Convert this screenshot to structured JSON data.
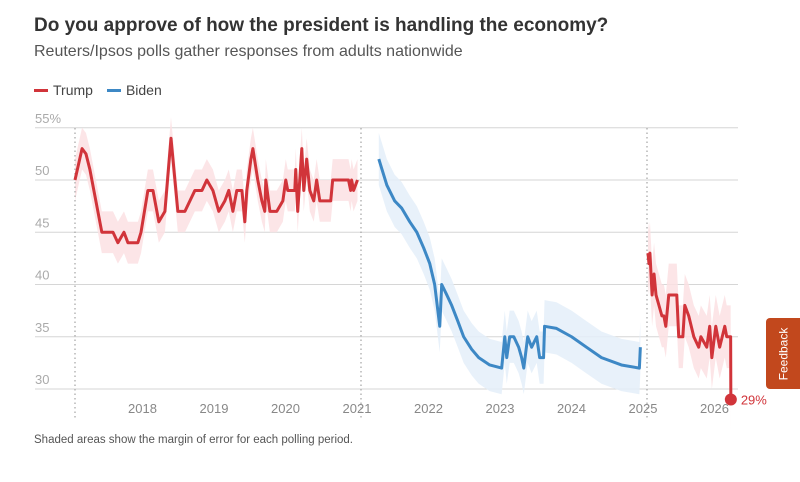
{
  "header": {
    "title": "Do you approve of how the president is handling the economy?",
    "subtitle": "Reuters/Ipsos polls gather responses from adults nationwide"
  },
  "footnote": "Shaded areas show the margin of error for each polling period.",
  "feedback_label": "Feedback",
  "chart_data": {
    "type": "line",
    "title": "Do you approve of how the president is handling the economy?",
    "ylim": [
      26,
      56
    ],
    "yticks": [
      55,
      50,
      45,
      40,
      35,
      30
    ],
    "ytick_labels": [
      "55%",
      "50",
      "45",
      "40",
      "35",
      "30"
    ],
    "xlim": [
      "2017-01-01",
      "2026-05-01"
    ],
    "xtick_labels": [
      "2018",
      "2019",
      "2020",
      "2021",
      "2022",
      "2023",
      "2024",
      "2025",
      "2026"
    ],
    "grid": "horizontal",
    "legend": "top-left",
    "term_markers": [
      "2017-01-01",
      "2021-01-01",
      "2025-01-01"
    ],
    "end_label": "29%",
    "legend_entries": [
      {
        "name": "Trump",
        "color": "#d1343a"
      },
      {
        "name": "Biden",
        "color": "#3d88c5"
      }
    ],
    "series": [
      {
        "name": "Trump",
        "color": "#d1343a",
        "band_color": "#fbe1e3",
        "moe": 2,
        "points": [
          [
            "2017-01-01",
            50
          ],
          [
            "2017-02-06",
            53
          ],
          [
            "2017-02-26",
            52.5
          ],
          [
            "2017-03-18",
            51
          ],
          [
            "2017-05-18",
            45
          ],
          [
            "2017-07-14",
            45
          ],
          [
            "2017-08-08",
            44
          ],
          [
            "2017-09-08",
            45
          ],
          [
            "2017-09-28",
            44
          ],
          [
            "2017-11-18",
            44
          ],
          [
            "2017-12-04",
            45
          ],
          [
            "2018-01-08",
            49
          ],
          [
            "2018-02-03",
            49
          ],
          [
            "2018-03-05",
            46
          ],
          [
            "2018-04-05",
            47
          ],
          [
            "2018-05-06",
            54
          ],
          [
            "2018-06-10",
            47
          ],
          [
            "2018-07-16",
            47
          ],
          [
            "2018-09-05",
            49
          ],
          [
            "2018-10-11",
            49
          ],
          [
            "2018-11-05",
            50
          ],
          [
            "2018-12-06",
            49
          ],
          [
            "2019-01-05",
            47
          ],
          [
            "2019-02-05",
            48
          ],
          [
            "2019-02-25",
            49
          ],
          [
            "2019-03-18",
            47
          ],
          [
            "2019-04-07",
            49
          ],
          [
            "2019-05-03",
            49
          ],
          [
            "2019-05-18",
            46
          ],
          [
            "2019-05-28",
            49
          ],
          [
            "2019-06-18",
            52
          ],
          [
            "2019-06-28",
            53
          ],
          [
            "2019-07-23",
            50
          ],
          [
            "2019-08-13",
            48
          ],
          [
            "2019-08-28",
            47
          ],
          [
            "2019-09-02",
            50
          ],
          [
            "2019-09-23",
            47
          ],
          [
            "2019-10-28",
            47
          ],
          [
            "2019-11-28",
            48
          ],
          [
            "2019-12-13",
            50
          ],
          [
            "2019-12-23",
            49
          ],
          [
            "2020-01-28",
            49
          ],
          [
            "2020-02-02",
            51
          ],
          [
            "2020-02-12",
            47
          ],
          [
            "2020-03-04",
            53
          ],
          [
            "2020-03-14",
            49
          ],
          [
            "2020-03-29",
            52
          ],
          [
            "2020-04-14",
            49
          ],
          [
            "2020-05-04",
            48
          ],
          [
            "2020-05-19",
            50
          ],
          [
            "2020-06-04",
            48
          ],
          [
            "2020-07-30",
            48
          ],
          [
            "2020-08-09",
            50
          ],
          [
            "2020-10-29",
            50
          ],
          [
            "2020-11-09",
            49
          ],
          [
            "2020-11-14",
            50
          ],
          [
            "2020-11-24",
            49
          ],
          [
            "2020-12-14",
            50
          ]
        ]
      },
      {
        "name": "Biden",
        "color": "#3d88c5",
        "band_color": "#e4eff9",
        "moe": 2.5,
        "points": [
          [
            "2021-04-02",
            52
          ],
          [
            "2021-05-13",
            49.5
          ],
          [
            "2021-06-22",
            48
          ],
          [
            "2021-07-28",
            47.3
          ],
          [
            "2021-09-07",
            46
          ],
          [
            "2021-10-13",
            45
          ],
          [
            "2021-11-17",
            43.5
          ],
          [
            "2021-12-18",
            42
          ],
          [
            "2022-01-12",
            40
          ],
          [
            "2022-02-07",
            36
          ],
          [
            "2022-02-17",
            40
          ],
          [
            "2022-03-15",
            39
          ],
          [
            "2022-04-09",
            38
          ],
          [
            "2022-05-10",
            36.5
          ],
          [
            "2022-06-09",
            35
          ],
          [
            "2022-07-20",
            33.8
          ],
          [
            "2022-08-25",
            33
          ],
          [
            "2022-10-20",
            32.3
          ],
          [
            "2022-12-20",
            32
          ],
          [
            "2023-01-05",
            35
          ],
          [
            "2023-01-15",
            33
          ],
          [
            "2023-01-30",
            35
          ],
          [
            "2023-02-20",
            35
          ],
          [
            "2023-03-17",
            34
          ],
          [
            "2023-04-01",
            33
          ],
          [
            "2023-04-12",
            32
          ],
          [
            "2023-05-02",
            35
          ],
          [
            "2023-05-22",
            34
          ],
          [
            "2023-06-17",
            35
          ],
          [
            "2023-07-02",
            33
          ],
          [
            "2023-07-22",
            33
          ],
          [
            "2023-07-27",
            36
          ],
          [
            "2023-09-26",
            35.8
          ],
          [
            "2023-12-12",
            35
          ],
          [
            "2024-02-26",
            34
          ],
          [
            "2024-05-13",
            33
          ],
          [
            "2024-08-23",
            32.3
          ],
          [
            "2024-11-23",
            32
          ],
          [
            "2024-11-28",
            34
          ]
        ]
      },
      {
        "name": "Trump",
        "color": "#d1343a",
        "band_color": "#fbe1e3",
        "moe": 3,
        "points": [
          [
            "2025-01-06",
            43
          ],
          [
            "2025-01-11",
            42
          ],
          [
            "2025-01-16",
            43
          ],
          [
            "2025-01-27",
            39
          ],
          [
            "2025-02-06",
            41
          ],
          [
            "2025-02-16",
            39
          ],
          [
            "2025-03-03",
            38
          ],
          [
            "2025-03-18",
            37
          ],
          [
            "2025-03-28",
            37
          ],
          [
            "2025-04-07",
            36
          ],
          [
            "2025-04-22",
            39
          ],
          [
            "2025-06-02",
            39
          ],
          [
            "2025-06-12",
            35
          ],
          [
            "2025-07-03",
            35
          ],
          [
            "2025-07-13",
            38
          ],
          [
            "2025-08-02",
            37
          ],
          [
            "2025-08-28",
            35
          ],
          [
            "2025-09-22",
            34
          ],
          [
            "2025-10-03",
            35
          ],
          [
            "2025-11-02",
            34
          ],
          [
            "2025-11-17",
            36
          ],
          [
            "2025-11-28",
            33
          ],
          [
            "2025-12-18",
            36
          ],
          [
            "2026-01-07",
            34
          ],
          [
            "2026-02-02",
            36
          ],
          [
            "2026-02-12",
            35
          ],
          [
            "2026-03-04",
            35
          ],
          [
            "2026-03-05",
            29
          ]
        ]
      }
    ]
  }
}
